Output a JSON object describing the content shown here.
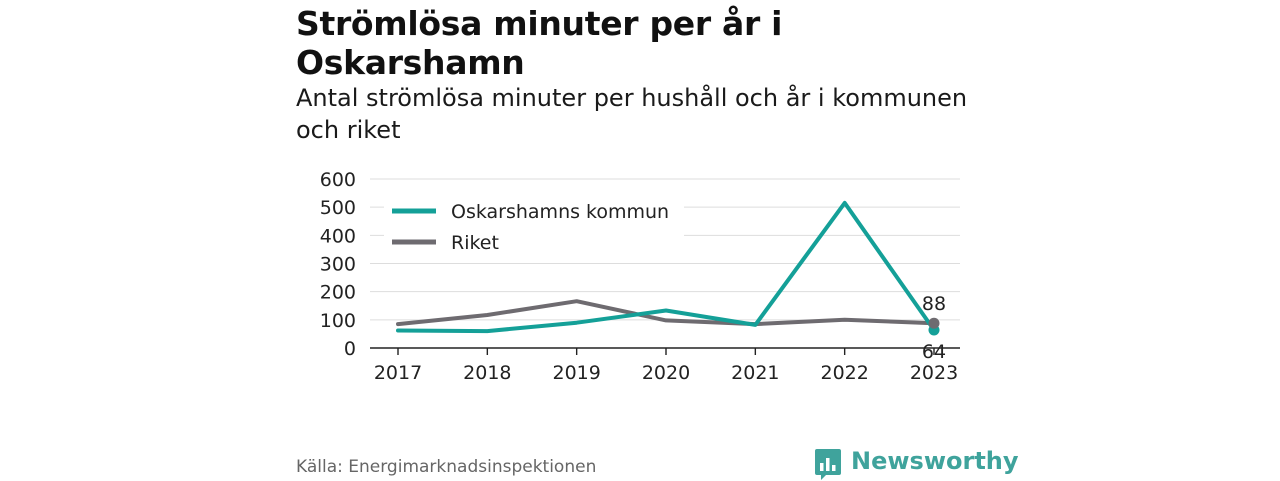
{
  "header": {
    "title": "Strömlösa minuter per år i Oskarshamn",
    "subtitle": "Antal strömlösa minuter per hushåll och år i kommunen och riket"
  },
  "footer": {
    "source": "Källa: Energimarknadsinspektionen",
    "brand": "Newsworthy"
  },
  "colors": {
    "oskarshamn": "#14a098",
    "riket": "#6e6b70",
    "brand": "#3fa39c",
    "grid": "#dddddd"
  },
  "chart_data": {
    "type": "line",
    "x": [
      "2017",
      "2018",
      "2019",
      "2020",
      "2021",
      "2022",
      "2023"
    ],
    "ylim": [
      0,
      600
    ],
    "yticks": [
      0,
      100,
      200,
      300,
      400,
      500,
      600
    ],
    "grid": true,
    "legend_position": "top-left",
    "series": [
      {
        "name": "Oskarshamns kommun",
        "color": "#14a098",
        "values": [
          62,
          60,
          90,
          133,
          82,
          515,
          64
        ],
        "end_label": "64",
        "end_label_position": "below"
      },
      {
        "name": "Riket",
        "color": "#6e6b70",
        "values": [
          85,
          117,
          166,
          98,
          85,
          100,
          88
        ],
        "end_label": "88",
        "end_label_position": "above"
      }
    ]
  }
}
